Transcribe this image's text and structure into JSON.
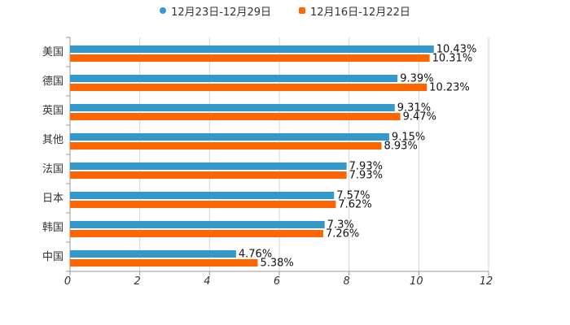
{
  "chart_data": {
    "type": "bar",
    "orientation": "horizontal",
    "title": "",
    "categories": [
      "美国",
      "德国",
      "英国",
      "其他",
      "法国",
      "日本",
      "韩国",
      "中国"
    ],
    "series": [
      {
        "name": "12月23日-12月29日",
        "color": "#3399cc",
        "marker": "circle",
        "values": [
          10.43,
          9.39,
          9.31,
          9.15,
          7.93,
          7.57,
          7.3,
          4.76
        ],
        "labels": [
          "10.43%",
          "9.39%",
          "9.31%",
          "9.15%",
          "7.93%",
          "7.57%",
          "7.3%",
          "4.76%"
        ]
      },
      {
        "name": "12月16日-12月22日",
        "color": "#ff6600",
        "marker": "square",
        "values": [
          10.31,
          10.23,
          9.47,
          8.93,
          7.93,
          7.62,
          7.26,
          5.38
        ],
        "labels": [
          "10.31%",
          "10.23%",
          "9.47%",
          "8.93%",
          "7.93%",
          "7.62%",
          "7.26%",
          "5.38%"
        ]
      }
    ],
    "xlim": [
      0,
      12
    ],
    "xticks": [
      "0",
      "2",
      "4",
      "6",
      "8",
      "10",
      "12"
    ],
    "xlabel": "",
    "ylabel": "",
    "grid": true,
    "legend": "top-center"
  }
}
